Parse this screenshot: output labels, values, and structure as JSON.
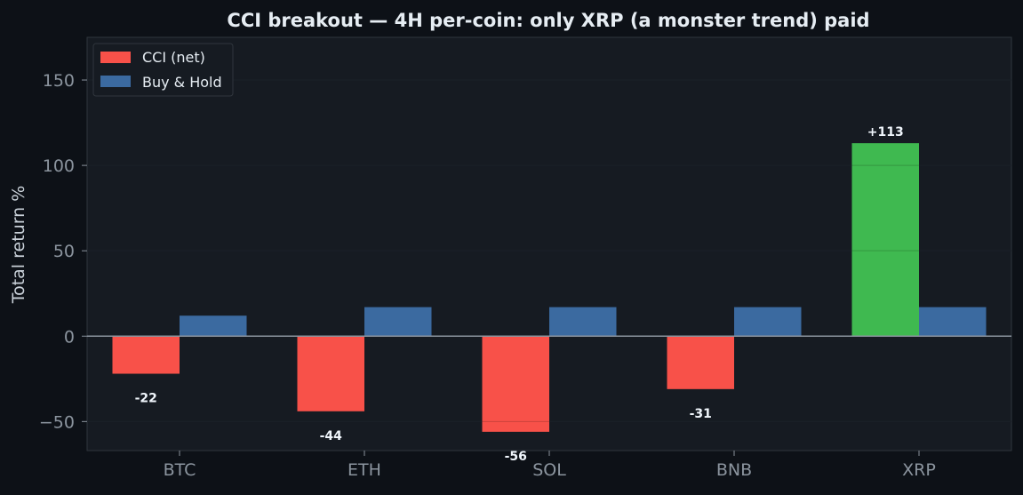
{
  "chart_data": {
    "type": "bar",
    "title": "CCI breakout — 4H per-coin: only XRP (a monster trend) paid",
    "xlabel": "",
    "ylabel": "Total return %",
    "categories": [
      "BTC",
      "ETH",
      "SOL",
      "BNB",
      "XRP"
    ],
    "series": [
      {
        "name": "CCI (net)",
        "values": [
          -22,
          -44,
          -56,
          -31,
          113
        ],
        "labels": [
          "-22",
          "-44",
          "-56",
          "-31",
          "+113"
        ],
        "color": "#f85149",
        "positive_color": "#3fb950"
      },
      {
        "name": "Buy & Hold",
        "values": [
          12,
          17,
          17,
          17,
          17
        ],
        "color": "#3b6aa0"
      }
    ],
    "ylim": [
      -67,
      175
    ],
    "yticks": [
      -50,
      0,
      50,
      100,
      150
    ],
    "ytick_labels": [
      "−50",
      "0",
      "50",
      "100",
      "150"
    ],
    "grid": true,
    "legend_position": "top-left",
    "colors": {
      "background": "#0d1117",
      "plot_background": "#161b22",
      "axis_text": "#8b949e",
      "title_text": "#e6edf3",
      "zero_line": "#8b949e"
    }
  }
}
